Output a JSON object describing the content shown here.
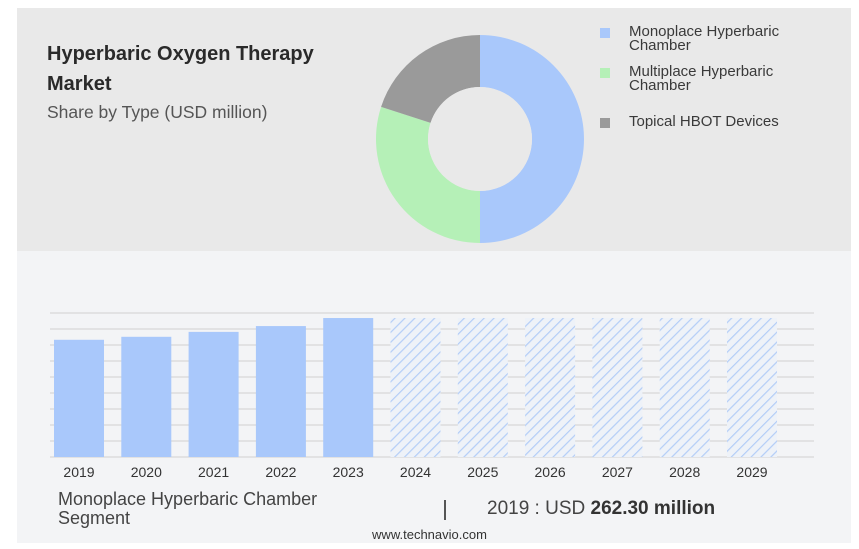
{
  "header": {
    "title": "Hyperbaric Oxygen Therapy Market",
    "subtitle": "Share by Type (USD million)"
  },
  "legend": {
    "items": [
      {
        "label": "Monoplace Hyperbaric Chamber",
        "color": "#a9c8fb"
      },
      {
        "label": "Multiplace Hyperbaric Chamber",
        "color": "#b5f0b7"
      },
      {
        "label": "Topical HBOT Devices",
        "color": "#9a9a9a"
      }
    ]
  },
  "footer": {
    "segment_label": "Monoplace Hyperbaric Chamber Segment",
    "value_prefix": "2019 : USD",
    "value": "262.30 million",
    "source": "www.technavio.com"
  },
  "chart_data": [
    {
      "type": "pie",
      "style": "donut",
      "categories": [
        "Monoplace Hyperbaric Chamber",
        "Multiplace Hyperbaric Chamber",
        "Topical HBOT Devices"
      ],
      "values": [
        50,
        30,
        20
      ],
      "colors": [
        "#a9c8fb",
        "#b5f0b7",
        "#9a9a9a"
      ],
      "legend_position": "right"
    },
    {
      "type": "bar",
      "categories": [
        "2019",
        "2020",
        "2021",
        "2022",
        "2023",
        "2024",
        "2025",
        "2026",
        "2027",
        "2028",
        "2029"
      ],
      "series": [
        {
          "values": [
            262.3,
            269,
            280,
            293,
            311,
            311,
            311,
            311,
            311,
            311,
            311
          ],
          "styles": [
            "solid",
            "solid",
            "solid",
            "solid",
            "solid",
            "hatched",
            "hatched",
            "hatched",
            "hatched",
            "hatched",
            "hatched"
          ]
        }
      ],
      "ylim": [
        0,
        320
      ],
      "grid": true,
      "colors": {
        "bar": "#a9c8fb",
        "hatch": "#b3cdf7",
        "grid": "#d0d0d0"
      }
    }
  ]
}
